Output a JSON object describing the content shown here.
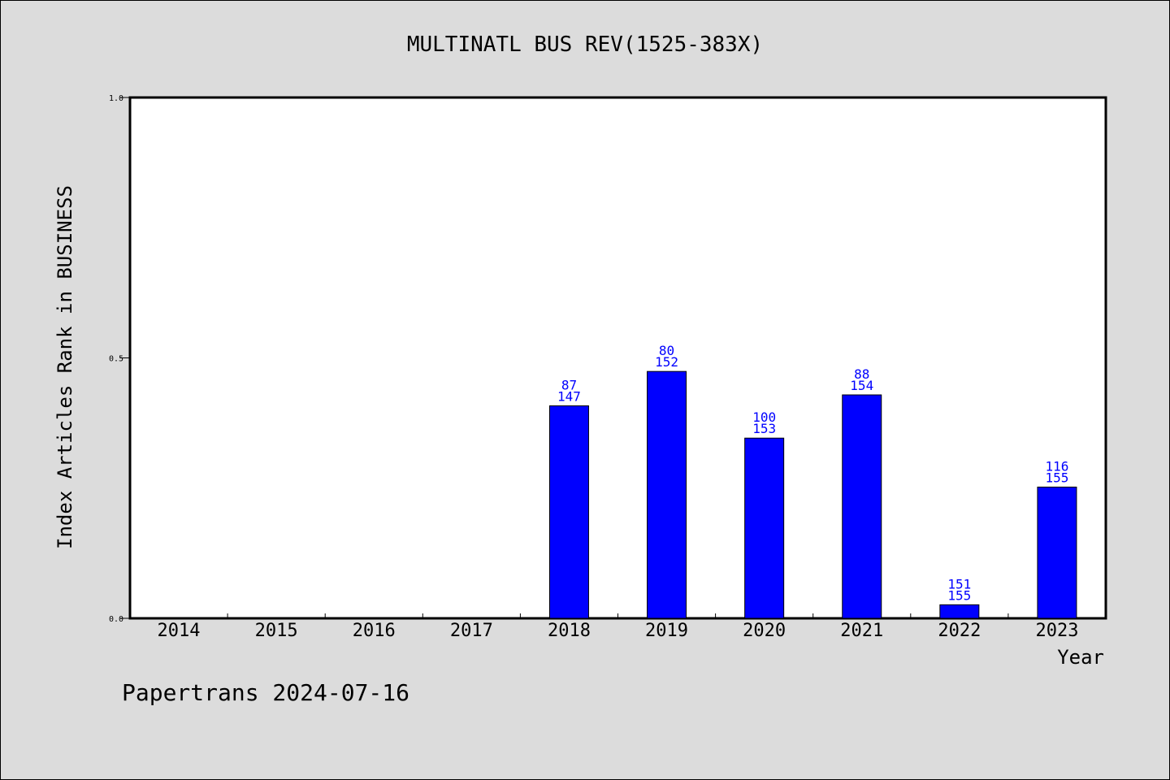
{
  "chart_data": {
    "type": "bar",
    "title": "MULTINATL BUS REV(1525-383X)",
    "xlabel": "Year",
    "ylabel": "Index Articles Rank in BUSINESS",
    "ylim": [
      0,
      1
    ],
    "yticks": [
      "0.0",
      "0.5",
      "1.0"
    ],
    "categories": [
      "2014",
      "2015",
      "2016",
      "2017",
      "2018",
      "2019",
      "2020",
      "2021",
      "2022",
      "2023"
    ],
    "values": [
      null,
      null,
      null,
      null,
      0.408,
      0.474,
      0.346,
      0.429,
      0.026,
      0.252
    ],
    "rank_labels": [
      "",
      "",
      "",
      "",
      "87",
      "80",
      "100",
      "88",
      "151",
      "116"
    ],
    "total_labels": [
      "",
      "",
      "",
      "",
      "147",
      "152",
      "153",
      "154",
      "155",
      "155"
    ],
    "bar_color": "#0000ff",
    "label_color": "#0000ff",
    "grid": false
  },
  "footer": "Papertrans 2024-07-16"
}
